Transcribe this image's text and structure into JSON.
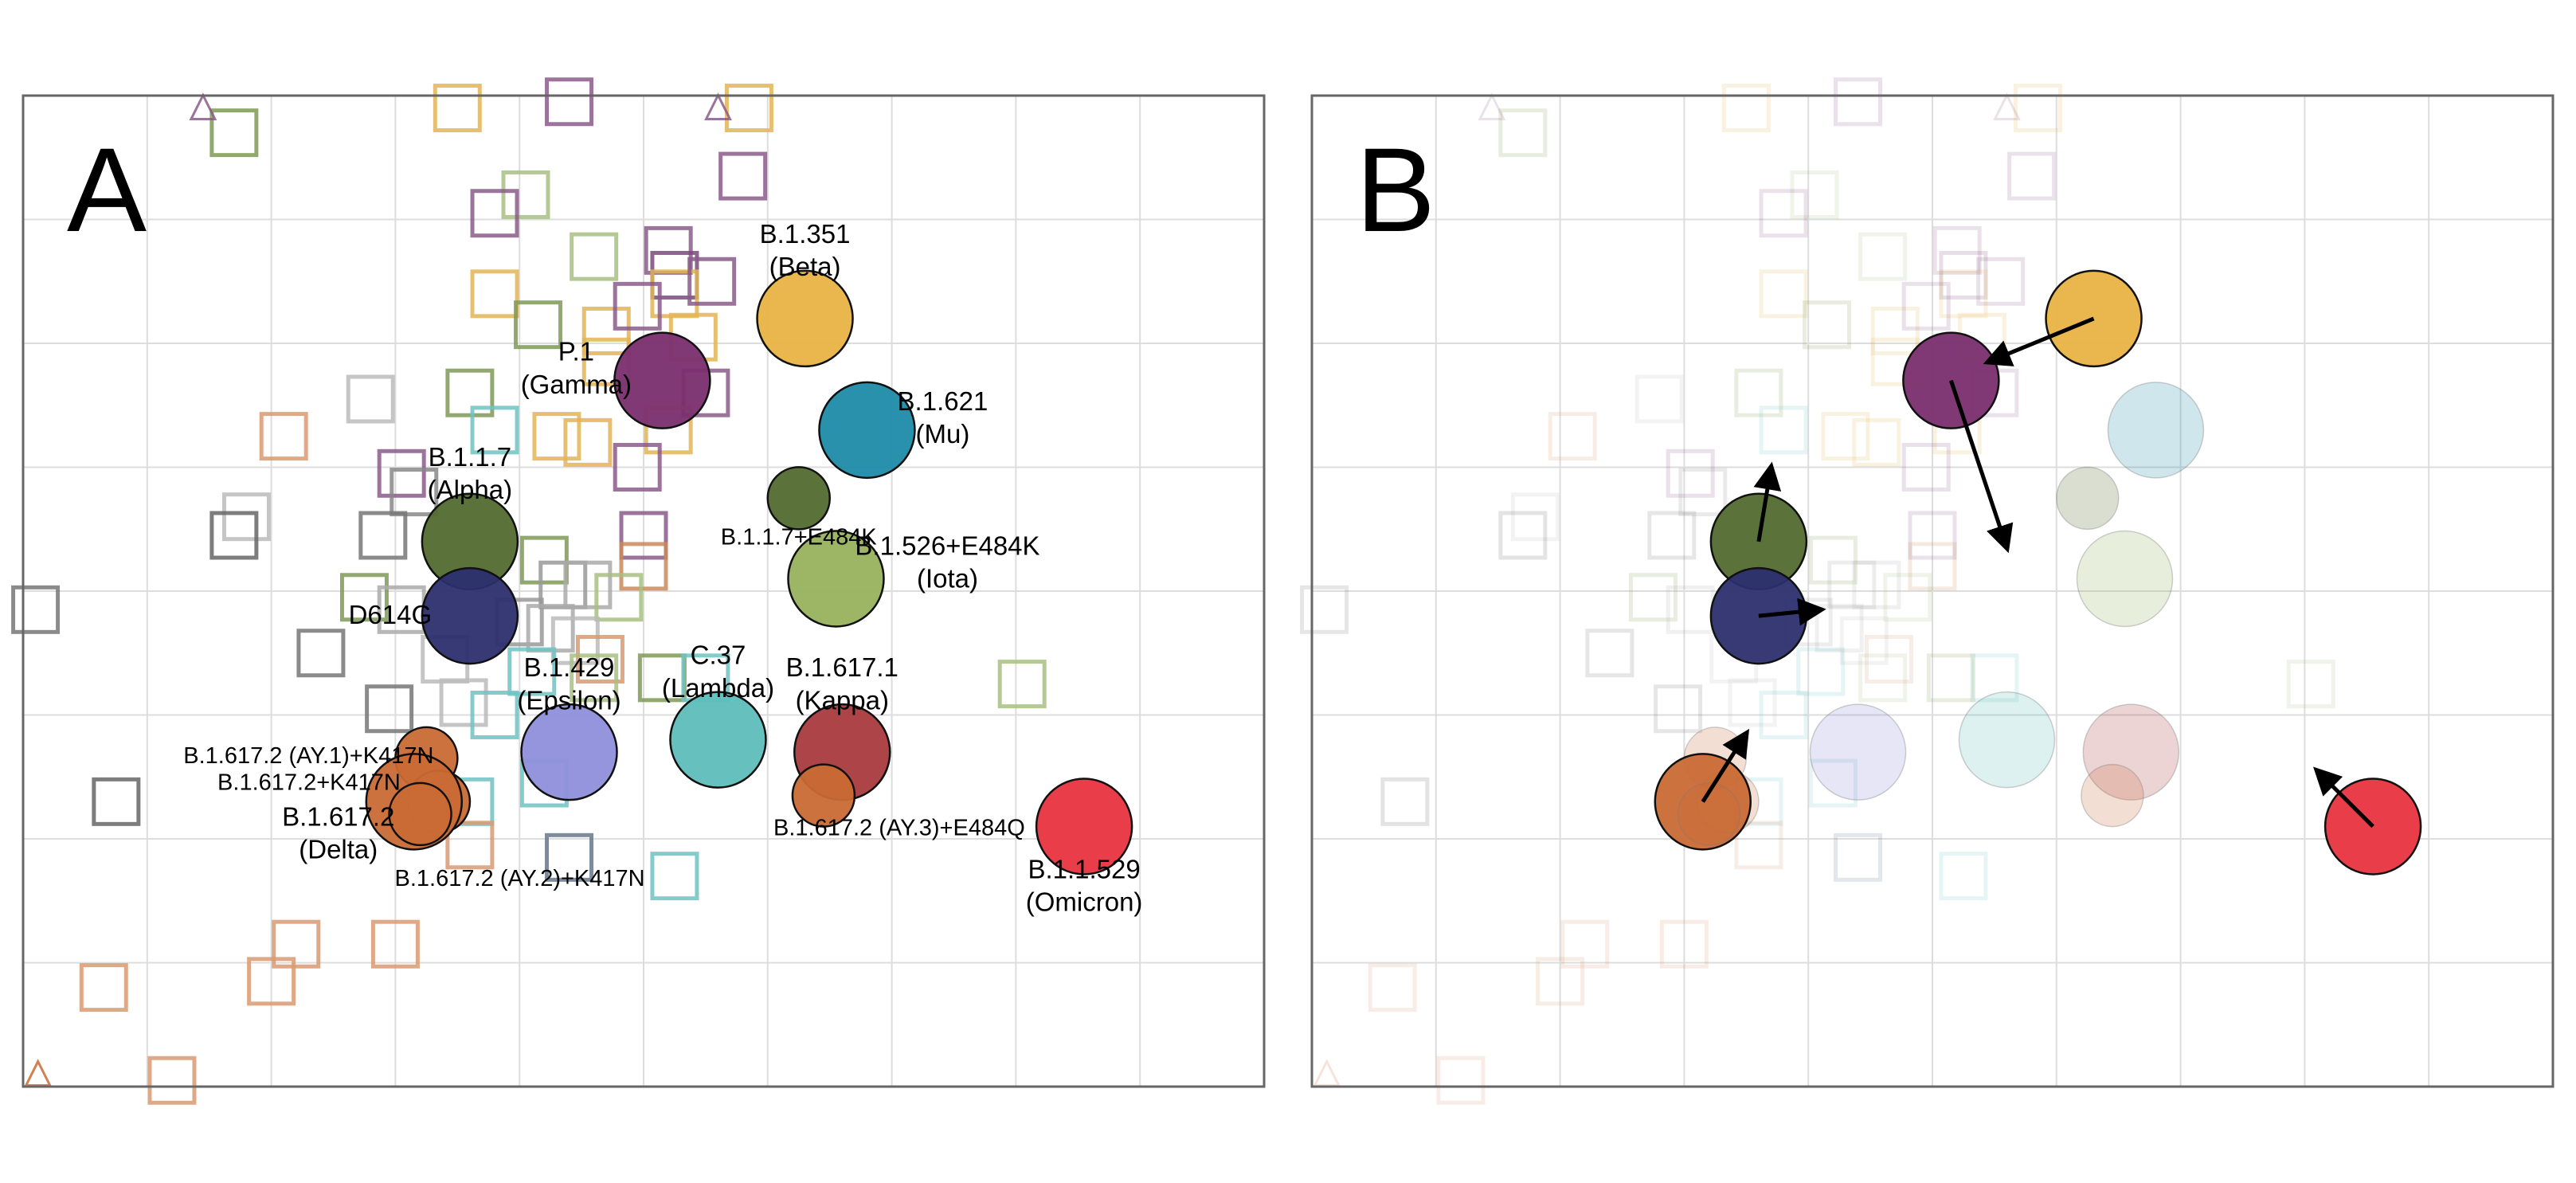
{
  "chart_data": [
    {
      "type": "scatter",
      "panel_label": "A",
      "title": "",
      "xlabel": "",
      "ylabel": "",
      "grid": true,
      "xlim": [
        0,
        10
      ],
      "ylim": [
        0,
        8
      ],
      "antigens": [
        {
          "id": "b1351",
          "label": "B.1.351\n(Beta)",
          "x": 6.3,
          "y": 6.2,
          "size": 0.8,
          "color": "#E8B343"
        },
        {
          "id": "p1",
          "label": "P.1\n(Gamma)",
          "x": 5.15,
          "y": 5.7,
          "size": 0.8,
          "color": "#7A2E6E"
        },
        {
          "id": "b1621",
          "label": "B.1.621\n(Mu)",
          "x": 6.8,
          "y": 5.3,
          "size": 0.8,
          "color": "#1E8BA8"
        },
        {
          "id": "b117e484k",
          "label": "B.1.1.7+E484K",
          "x": 6.25,
          "y": 4.75,
          "size": 0.52,
          "color": "#526B2F"
        },
        {
          "id": "b117",
          "label": "B.1.1.7\n(Alpha)",
          "x": 3.6,
          "y": 4.4,
          "size": 0.8,
          "color": "#526B2F"
        },
        {
          "id": "b1526",
          "label": "B.1.526+E484K\n(Iota)",
          "x": 6.55,
          "y": 4.1,
          "size": 0.8,
          "color": "#98B25E"
        },
        {
          "id": "d614g",
          "label": "D614G",
          "x": 3.6,
          "y": 3.8,
          "size": 0.8,
          "color": "#2D2F6E"
        },
        {
          "id": "b1429",
          "label": "B.1.429\n(Epsilon)",
          "x": 4.4,
          "y": 2.7,
          "size": 0.8,
          "color": "#8E8FDA"
        },
        {
          "id": "c37",
          "label": "C.37\n(Lambda)",
          "x": 5.6,
          "y": 2.8,
          "size": 0.8,
          "color": "#5EBDBA"
        },
        {
          "id": "b16171",
          "label": "B.1.617.1\n(Kappa)",
          "x": 6.6,
          "y": 2.7,
          "size": 0.8,
          "color": "#A83A3E"
        },
        {
          "id": "ay3",
          "label": "B.1.617.2 (AY.3)+E484Q",
          "x": 6.45,
          "y": 2.35,
          "size": 0.52,
          "color": "#C96A35"
        },
        {
          "id": "ay1",
          "label": "B.1.617.2 (AY.1)+K417N",
          "x": 3.25,
          "y": 2.65,
          "size": 0.52,
          "color": "#C96A35"
        },
        {
          "id": "b16172k",
          "label": "B.1.617.2+K417N",
          "x": 3.35,
          "y": 2.3,
          "size": 0.52,
          "color": "#C96A35"
        },
        {
          "id": "delta",
          "label": "B.1.617.2\n(Delta)",
          "x": 3.15,
          "y": 2.3,
          "size": 0.8,
          "color": "#C96A35"
        },
        {
          "id": "ay2",
          "label": "B.1.617.2 (AY.2)+K417N",
          "x": 3.2,
          "y": 2.2,
          "size": 0.52,
          "color": "#C96A35"
        },
        {
          "id": "omicron",
          "label": "B.1.1.529\n(Omicron)",
          "x": 8.55,
          "y": 2.1,
          "size": 0.8,
          "color": "#E8333F"
        }
      ],
      "sera": [
        {
          "x": 1.7,
          "y": 7.7,
          "color": "#7E9A55"
        },
        {
          "x": 3.5,
          "y": 7.9,
          "color": "#E2B555"
        },
        {
          "x": 4.4,
          "y": 7.95,
          "color": "#8A5A8A"
        },
        {
          "x": 5.85,
          "y": 7.9,
          "color": "#E2B555"
        },
        {
          "x": 5.8,
          "y": 7.35,
          "color": "#8A5A8A"
        },
        {
          "x": 4.05,
          "y": 7.2,
          "color": "#A8BF83"
        },
        {
          "x": 3.8,
          "y": 7.05,
          "color": "#8A5A8A"
        },
        {
          "x": 4.6,
          "y": 6.7,
          "color": "#A8BF83"
        },
        {
          "x": 5.2,
          "y": 6.75,
          "color": "#8A5A8A"
        },
        {
          "x": 5.25,
          "y": 6.55,
          "color": "#7A4A7A"
        },
        {
          "x": 5.25,
          "y": 6.4,
          "color": "#E2B555"
        },
        {
          "x": 5.55,
          "y": 6.5,
          "color": "#8A5A8A"
        },
        {
          "x": 3.8,
          "y": 6.4,
          "color": "#E2B555"
        },
        {
          "x": 4.15,
          "y": 6.15,
          "color": "#7E9A55"
        },
        {
          "x": 4.7,
          "y": 6.1,
          "color": "#E2B555"
        },
        {
          "x": 4.95,
          "y": 6.3,
          "color": "#8A5A8A"
        },
        {
          "x": 5.4,
          "y": 6.05,
          "color": "#E2B555"
        },
        {
          "x": 4.7,
          "y": 5.85,
          "color": "#E2B555"
        },
        {
          "x": 5.5,
          "y": 5.6,
          "color": "#8A5A8A"
        },
        {
          "x": 2.8,
          "y": 5.55,
          "color": "#BBBBBB"
        },
        {
          "x": 3.6,
          "y": 5.6,
          "color": "#7E9A55"
        },
        {
          "x": 3.8,
          "y": 5.3,
          "color": "#6FC3C3"
        },
        {
          "x": 4.3,
          "y": 5.25,
          "color": "#E2B555"
        },
        {
          "x": 4.55,
          "y": 5.2,
          "color": "#E2B555"
        },
        {
          "x": 5.2,
          "y": 5.3,
          "color": "#E2B555"
        },
        {
          "x": 4.95,
          "y": 5.0,
          "color": "#8A5A8A"
        },
        {
          "x": 2.1,
          "y": 5.25,
          "color": "#D99A72"
        },
        {
          "x": 3.05,
          "y": 4.95,
          "color": "#8A5A8A"
        },
        {
          "x": 3.15,
          "y": 4.8,
          "color": "#888888"
        },
        {
          "x": 1.8,
          "y": 4.6,
          "color": "#BBBBBB"
        },
        {
          "x": 1.7,
          "y": 4.45,
          "color": "#666666"
        },
        {
          "x": 2.9,
          "y": 4.45,
          "color": "#777777"
        },
        {
          "x": 5.0,
          "y": 4.45,
          "color": "#8A5A8A"
        },
        {
          "x": 5.0,
          "y": 4.2,
          "color": "#C98A5A"
        },
        {
          "x": 4.2,
          "y": 4.25,
          "color": "#7E9A55"
        },
        {
          "x": 4.35,
          "y": 4.05,
          "color": "#999999"
        },
        {
          "x": 4.55,
          "y": 4.05,
          "color": "#AAAAAA"
        },
        {
          "x": 4.8,
          "y": 3.95,
          "color": "#A8BF83"
        },
        {
          "x": 2.75,
          "y": 3.95,
          "color": "#7E9A55"
        },
        {
          "x": 3.05,
          "y": 3.85,
          "color": "#AAAAAA"
        },
        {
          "x": 4.0,
          "y": 3.75,
          "color": "#999999"
        },
        {
          "x": 4.25,
          "y": 3.7,
          "color": "#AAAAAA"
        },
        {
          "x": 4.45,
          "y": 3.6,
          "color": "#BBBBBB"
        },
        {
          "x": 4.65,
          "y": 3.45,
          "color": "#D99A72"
        },
        {
          "x": 0.1,
          "y": 3.85,
          "color": "#777777"
        },
        {
          "x": 2.4,
          "y": 3.5,
          "color": "#777777"
        },
        {
          "x": 3.4,
          "y": 3.45,
          "color": "#BBBBBB"
        },
        {
          "x": 4.1,
          "y": 3.35,
          "color": "#6FC3C3"
        },
        {
          "x": 4.6,
          "y": 3.3,
          "color": "#A8BF83"
        },
        {
          "x": 5.15,
          "y": 3.3,
          "color": "#7E9A55"
        },
        {
          "x": 5.5,
          "y": 3.3,
          "color": "#6FC3C3"
        },
        {
          "x": 8.05,
          "y": 3.25,
          "color": "#A8BF83"
        },
        {
          "x": 2.95,
          "y": 3.05,
          "color": "#777777"
        },
        {
          "x": 3.55,
          "y": 3.1,
          "color": "#BBBBBB"
        },
        {
          "x": 3.8,
          "y": 3.0,
          "color": "#6FC3C3"
        },
        {
          "x": 4.2,
          "y": 2.45,
          "color": "#6FC3C3"
        },
        {
          "x": 0.75,
          "y": 2.3,
          "color": "#666666"
        },
        {
          "x": 3.6,
          "y": 2.3,
          "color": "#6FC3C3"
        },
        {
          "x": 3.6,
          "y": 1.95,
          "color": "#D99A72"
        },
        {
          "x": 4.4,
          "y": 1.85,
          "color": "#667788"
        },
        {
          "x": 5.25,
          "y": 1.7,
          "color": "#6FC3C3"
        },
        {
          "x": 2.2,
          "y": 1.15,
          "color": "#D99A72"
        },
        {
          "x": 3.0,
          "y": 1.15,
          "color": "#D99A72"
        },
        {
          "x": 0.65,
          "y": 0.8,
          "color": "#D99A72"
        },
        {
          "x": 2.0,
          "y": 0.85,
          "color": "#D99A72"
        },
        {
          "x": 1.2,
          "y": 0.05,
          "color": "#D99A72"
        }
      ],
      "markers": [
        {
          "x": 1.45,
          "y": 7.9,
          "color": "#8A5A8A"
        },
        {
          "x": 5.6,
          "y": 7.9,
          "color": "#8A5A8A"
        },
        {
          "x": 0.12,
          "y": 0.1,
          "color": "#C96A35"
        }
      ]
    },
    {
      "type": "scatter",
      "panel_label": "B",
      "title": "",
      "xlabel": "",
      "ylabel": "",
      "grid": true,
      "xlim": [
        0,
        10
      ],
      "ylim": [
        0,
        8
      ],
      "highlighted": [
        "b1351",
        "p1",
        "b117",
        "d614g",
        "delta",
        "omicron"
      ],
      "arrows": [
        {
          "from": [
            6.3,
            6.2
          ],
          "to": [
            5.45,
            5.85
          ]
        },
        {
          "from": [
            5.15,
            5.7
          ],
          "to": [
            5.6,
            4.35
          ]
        },
        {
          "from": [
            3.6,
            4.4
          ],
          "to": [
            3.7,
            5.0
          ]
        },
        {
          "from": [
            3.6,
            3.8
          ],
          "to": [
            4.1,
            3.85
          ]
        },
        {
          "from": [
            3.15,
            2.3
          ],
          "to": [
            3.5,
            2.85
          ]
        },
        {
          "from": [
            8.55,
            2.1
          ],
          "to": [
            8.1,
            2.55
          ]
        }
      ]
    }
  ]
}
